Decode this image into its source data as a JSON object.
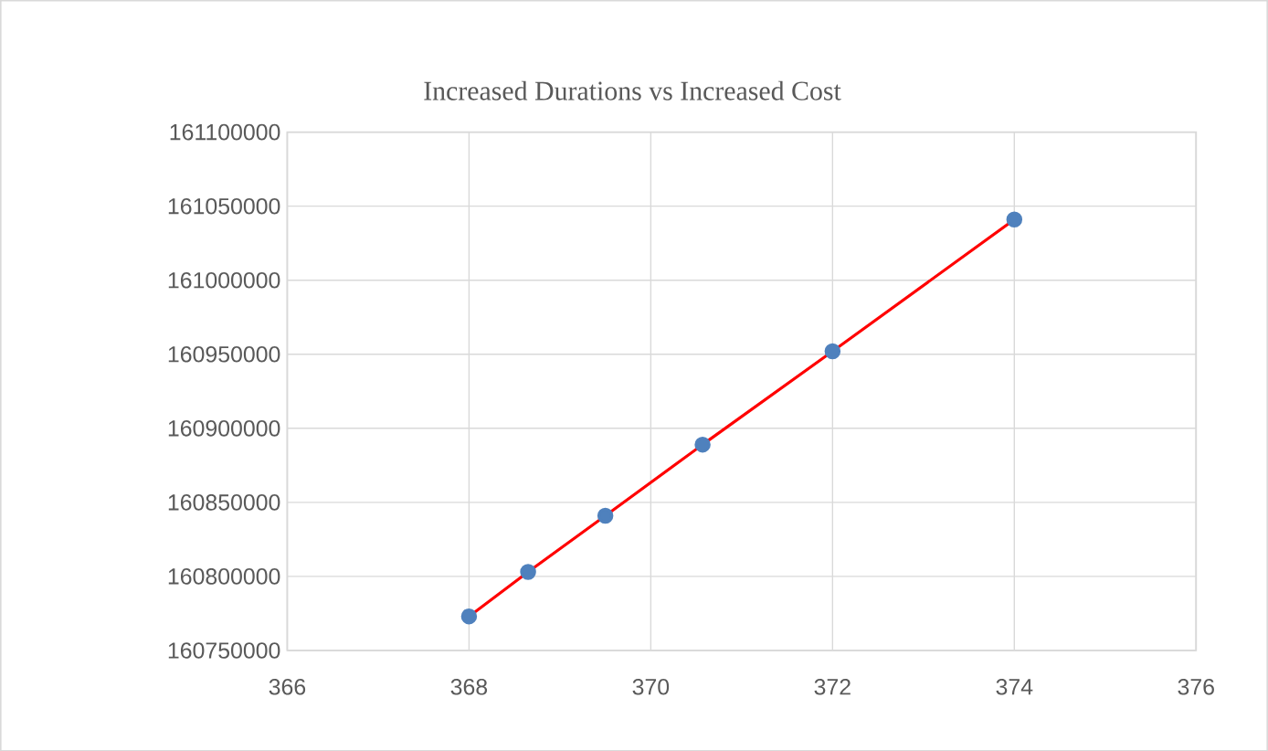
{
  "chart_data": {
    "type": "line",
    "title": "Increased Durations vs Increased Cost",
    "series": [
      {
        "color": "#ff0000",
        "x": [
          368,
          368.65,
          369.5,
          370.57,
          372,
          374
        ],
        "values": [
          160773000,
          160803000,
          160841000,
          160889000,
          160952000,
          161041000
        ]
      }
    ],
    "marker": "circle",
    "line_style": "solid",
    "grid": true,
    "xlim": [
      366,
      376
    ],
    "xticks": [
      366,
      368,
      370,
      372,
      374,
      376
    ],
    "ylim": [
      160750000,
      161100000
    ],
    "yticks": [
      160750000,
      160800000,
      160850000,
      160900000,
      160950000,
      161000000,
      161050000,
      161100000
    ]
  }
}
